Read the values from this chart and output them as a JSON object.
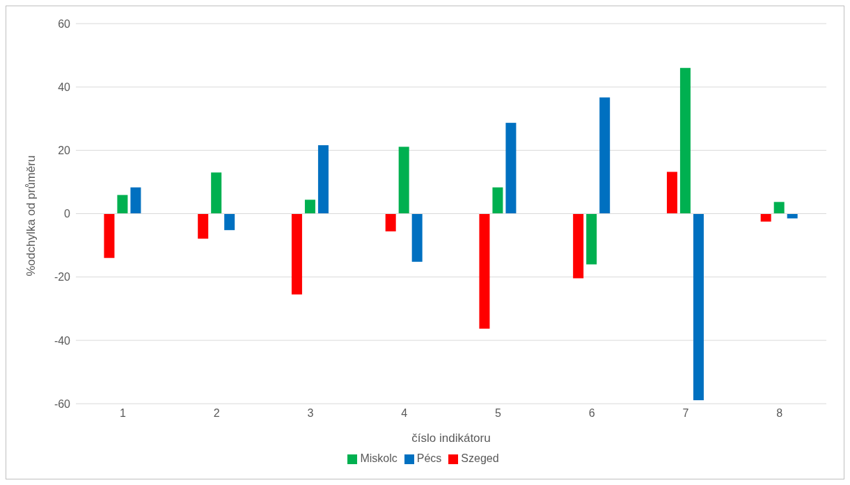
{
  "chart_data": {
    "type": "bar",
    "xlabel": "číslo indikátoru",
    "ylabel": "%odchylka od průměru",
    "categories": [
      "1",
      "2",
      "3",
      "4",
      "5",
      "6",
      "7",
      "8"
    ],
    "series": [
      {
        "name": "Szeged",
        "color": "#ff0000",
        "values": [
          -14,
          -7.9,
          -25.5,
          -5.6,
          -36.3,
          -20.4,
          13.2,
          -2.5
        ]
      },
      {
        "name": "Miskolc",
        "color": "#00b050",
        "values": [
          5.9,
          13,
          4.4,
          21.1,
          8.3,
          -16,
          46,
          3.7
        ]
      },
      {
        "name": "Pécs",
        "color": "#0070c0",
        "values": [
          8.3,
          -5.2,
          21.6,
          -15.2,
          28.7,
          36.7,
          -58.9,
          -1.5
        ]
      }
    ],
    "ylim": [
      -60,
      60
    ],
    "yticks": [
      -60,
      -40,
      -20,
      0,
      20,
      40,
      60
    ],
    "grid": "y",
    "legend": "bottom"
  }
}
